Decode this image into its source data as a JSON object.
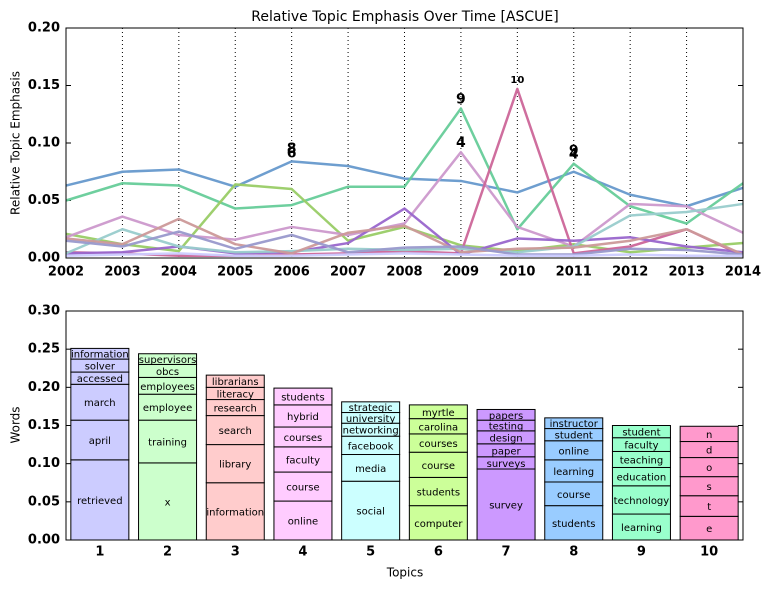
{
  "chart_data": [
    {
      "type": "line",
      "title": "Relative Topic Emphasis Over Time [ASCUE]",
      "y_label": "Relative Topic Emphasis",
      "x": [
        2002,
        2003,
        2004,
        2005,
        2006,
        2007,
        2008,
        2009,
        2010,
        2011,
        2012,
        2013,
        2014
      ],
      "xlim": [
        2002,
        2014
      ],
      "xticks": [
        2002,
        2003,
        2004,
        2005,
        2006,
        2007,
        2008,
        2009,
        2010,
        2011,
        2012,
        2013,
        2014
      ],
      "ylim": [
        0,
        0.2
      ],
      "yticks": [
        {
          "value": 0,
          "label": "0.00"
        },
        {
          "value": 0.05,
          "label": "0.05"
        },
        {
          "value": 0.1,
          "label": "0.10"
        },
        {
          "value": 0.15,
          "label": "0.15"
        },
        {
          "value": 0.2,
          "label": "0.20"
        }
      ],
      "xgrid": true,
      "series": [
        {
          "color": "#6699cc",
          "values": [
            0.063,
            0.075,
            0.077,
            0.062,
            0.084,
            0.08,
            0.069,
            0.067,
            0.057,
            0.075,
            0.055,
            0.045,
            0.061
          ]
        },
        {
          "color": "#66cc99",
          "values": [
            0.05,
            0.065,
            0.063,
            0.043,
            0.046,
            0.062,
            0.062,
            0.13,
            0.025,
            0.082,
            0.045,
            0.03,
            0.065
          ]
        },
        {
          "color": "#99cc66",
          "values": [
            0.021,
            0.012,
            0.006,
            0.064,
            0.06,
            0.015,
            0.027,
            0.011,
            0.006,
            0.012,
            0.005,
            0.009,
            0.013
          ]
        },
        {
          "color": "#cc99cc",
          "values": [
            0.018,
            0.036,
            0.02,
            0.016,
            0.027,
            0.02,
            0.03,
            0.092,
            0.027,
            0.01,
            0.047,
            0.045,
            0.022
          ]
        },
        {
          "color": "#cc6699",
          "values": [
            0.005,
            0.004,
            0.002,
            0.002,
            0.003,
            0.004,
            0.006,
            0.004,
            0.147,
            0.004,
            0.01,
            0.025,
            0.002
          ]
        },
        {
          "color": "#9966cc",
          "values": [
            0.004,
            0.005,
            0.01,
            0.004,
            0.005,
            0.013,
            0.043,
            0.003,
            0.017,
            0.015,
            0.018,
            0.01,
            0.005
          ]
        },
        {
          "color": "#99cccc",
          "values": [
            0.004,
            0.025,
            0.01,
            0.005,
            0.006,
            0.008,
            0.007,
            0.008,
            0.005,
            0.01,
            0.037,
            0.04,
            0.047
          ]
        },
        {
          "color": "#cc9999",
          "values": [
            0.017,
            0.012,
            0.034,
            0.012,
            0.004,
            0.022,
            0.028,
            0.005,
            0.008,
            0.009,
            0.015,
            0.025,
            0.003
          ]
        },
        {
          "color": "#9999cc",
          "values": [
            0.015,
            0.01,
            0.023,
            0.008,
            0.02,
            0.005,
            0.009,
            0.01,
            0.003,
            0.003,
            0.008,
            0.007,
            0.003
          ]
        },
        {
          "color": "#ccccff",
          "values": [
            0.002,
            0.003,
            0.004,
            0.002,
            0.002,
            0.003,
            0.004,
            0.003,
            0.002,
            0.002,
            0.003,
            0.002,
            0.002
          ]
        }
      ],
      "annotations": [
        {
          "text": "8",
          "x": 2006,
          "y": 0.095
        },
        {
          "text": "6",
          "x": 2006,
          "y": 0.091
        },
        {
          "text": "9",
          "x": 2009,
          "y": 0.138
        },
        {
          "text": "4",
          "x": 2009,
          "y": 0.1
        },
        {
          "text": "10",
          "x": 2010,
          "y": 0.155
        },
        {
          "text": "9",
          "x": 2011,
          "y": 0.093
        },
        {
          "text": "4",
          "x": 2011,
          "y": 0.09
        }
      ]
    },
    {
      "type": "stacked-bar",
      "x_label": "Topics",
      "y_label": "Words",
      "categories": [
        "1",
        "2",
        "3",
        "4",
        "5",
        "6",
        "7",
        "8",
        "9",
        "10"
      ],
      "ylim": [
        0,
        0.3
      ],
      "yticks": [
        {
          "value": 0,
          "label": "0.00"
        },
        {
          "value": 0.05,
          "label": "0.05"
        },
        {
          "value": 0.1,
          "label": "0.10"
        },
        {
          "value": 0.15,
          "label": "0.15"
        },
        {
          "value": 0.2,
          "label": "0.20"
        },
        {
          "value": 0.25,
          "label": "0.25"
        },
        {
          "value": 0.3,
          "label": "0.30"
        }
      ],
      "stacks": [
        {
          "color": "#ccccff",
          "words": [
            "retrieved",
            "april",
            "march",
            "accessed",
            "solver",
            "information"
          ],
          "values": [
            0.105,
            0.052,
            0.047,
            0.016,
            0.017,
            0.014
          ]
        },
        {
          "color": "#ccffcc",
          "words": [
            "x",
            "training",
            "employee",
            "employees",
            "obcs",
            "supervisors"
          ],
          "values": [
            0.101,
            0.056,
            0.034,
            0.022,
            0.017,
            0.014
          ]
        },
        {
          "color": "#ffcccc",
          "words": [
            "information",
            "library",
            "search",
            "research",
            "literacy",
            "librarians"
          ],
          "values": [
            0.075,
            0.05,
            0.038,
            0.021,
            0.016,
            0.016
          ]
        },
        {
          "color": "#ffccff",
          "words": [
            "online",
            "course",
            "faculty",
            "courses",
            "hybrid",
            "students"
          ],
          "values": [
            0.051,
            0.038,
            0.033,
            0.026,
            0.029,
            0.022
          ]
        },
        {
          "color": "#ccffff",
          "words": [
            "social",
            "media",
            "facebook",
            "networking",
            "university",
            "strategic"
          ],
          "values": [
            0.077,
            0.035,
            0.024,
            0.017,
            0.014,
            0.014
          ]
        },
        {
          "color": "#ccff99",
          "words": [
            "computer",
            "students",
            "course",
            "courses",
            "carolina",
            "myrtle"
          ],
          "values": [
            0.045,
            0.037,
            0.033,
            0.024,
            0.02,
            0.018
          ]
        },
        {
          "color": "#cc99ff",
          "words": [
            "survey",
            "surveys",
            "paper",
            "design",
            "testing",
            "papers"
          ],
          "values": [
            0.093,
            0.016,
            0.017,
            0.017,
            0.014,
            0.014
          ]
        },
        {
          "color": "#99ccff",
          "words": [
            "students",
            "course",
            "learning",
            "online",
            "student",
            "instructor"
          ],
          "values": [
            0.045,
            0.031,
            0.029,
            0.025,
            0.016,
            0.014
          ]
        },
        {
          "color": "#99ffcc",
          "words": [
            "learning",
            "technology",
            "education",
            "teaching",
            "faculty",
            "student"
          ],
          "values": [
            0.034,
            0.037,
            0.024,
            0.021,
            0.018,
            0.016
          ]
        },
        {
          "color": "#ff99cc",
          "words": [
            "e",
            "t",
            "s",
            "o",
            "d",
            "n"
          ],
          "values": [
            0.031,
            0.027,
            0.025,
            0.025,
            0.021,
            0.02
          ]
        }
      ]
    }
  ]
}
